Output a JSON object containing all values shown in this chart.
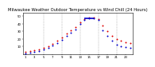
{
  "title": "Milwaukee Weather Outdoor Temperature vs Wind Chill (24 Hours)",
  "title_fontsize": 3.8,
  "bg_color": "#ffffff",
  "plot_bg": "#ffffff",
  "grid_color": "#888888",
  "temp_color": "#dd0000",
  "windchill_color": "#0000cc",
  "hours": [
    1,
    2,
    3,
    4,
    5,
    6,
    7,
    8,
    9,
    10,
    11,
    12,
    13,
    14,
    15,
    16,
    17,
    18,
    19,
    20,
    21,
    22,
    23,
    24
  ],
  "temp_values": [
    3,
    4,
    5,
    6,
    8,
    10,
    14,
    18,
    22,
    27,
    32,
    36,
    42,
    46,
    48,
    48,
    46,
    38,
    30,
    24,
    20,
    18,
    16,
    15
  ],
  "windchill_values": [
    1,
    2,
    3,
    4,
    6,
    8,
    11,
    15,
    19,
    24,
    28,
    33,
    40,
    45,
    47,
    47,
    45,
    32,
    24,
    18,
    13,
    10,
    9,
    8
  ],
  "hline_y": 47.0,
  "hline_x_start": 14,
  "hline_x_end": 16,
  "ylim": [
    0,
    55
  ],
  "xlim": [
    0.5,
    24.5
  ],
  "vgrid_positions": [
    5,
    9,
    13,
    17,
    21
  ],
  "dot_size": 2.0,
  "hline_color": "#0000cc",
  "hline_lw": 1.2,
  "xtick_positions": [
    1,
    3,
    5,
    7,
    9,
    11,
    13,
    15,
    17,
    19,
    21,
    23
  ],
  "xtick_labels": [
    "1",
    "3",
    "5",
    "7",
    "9",
    "11",
    "13",
    "15",
    "17",
    "19",
    "21",
    "23"
  ],
  "ytick_positions": [
    10,
    20,
    30,
    40,
    50
  ],
  "ytick_labels": [
    "10",
    "20",
    "30",
    "40",
    "50"
  ]
}
